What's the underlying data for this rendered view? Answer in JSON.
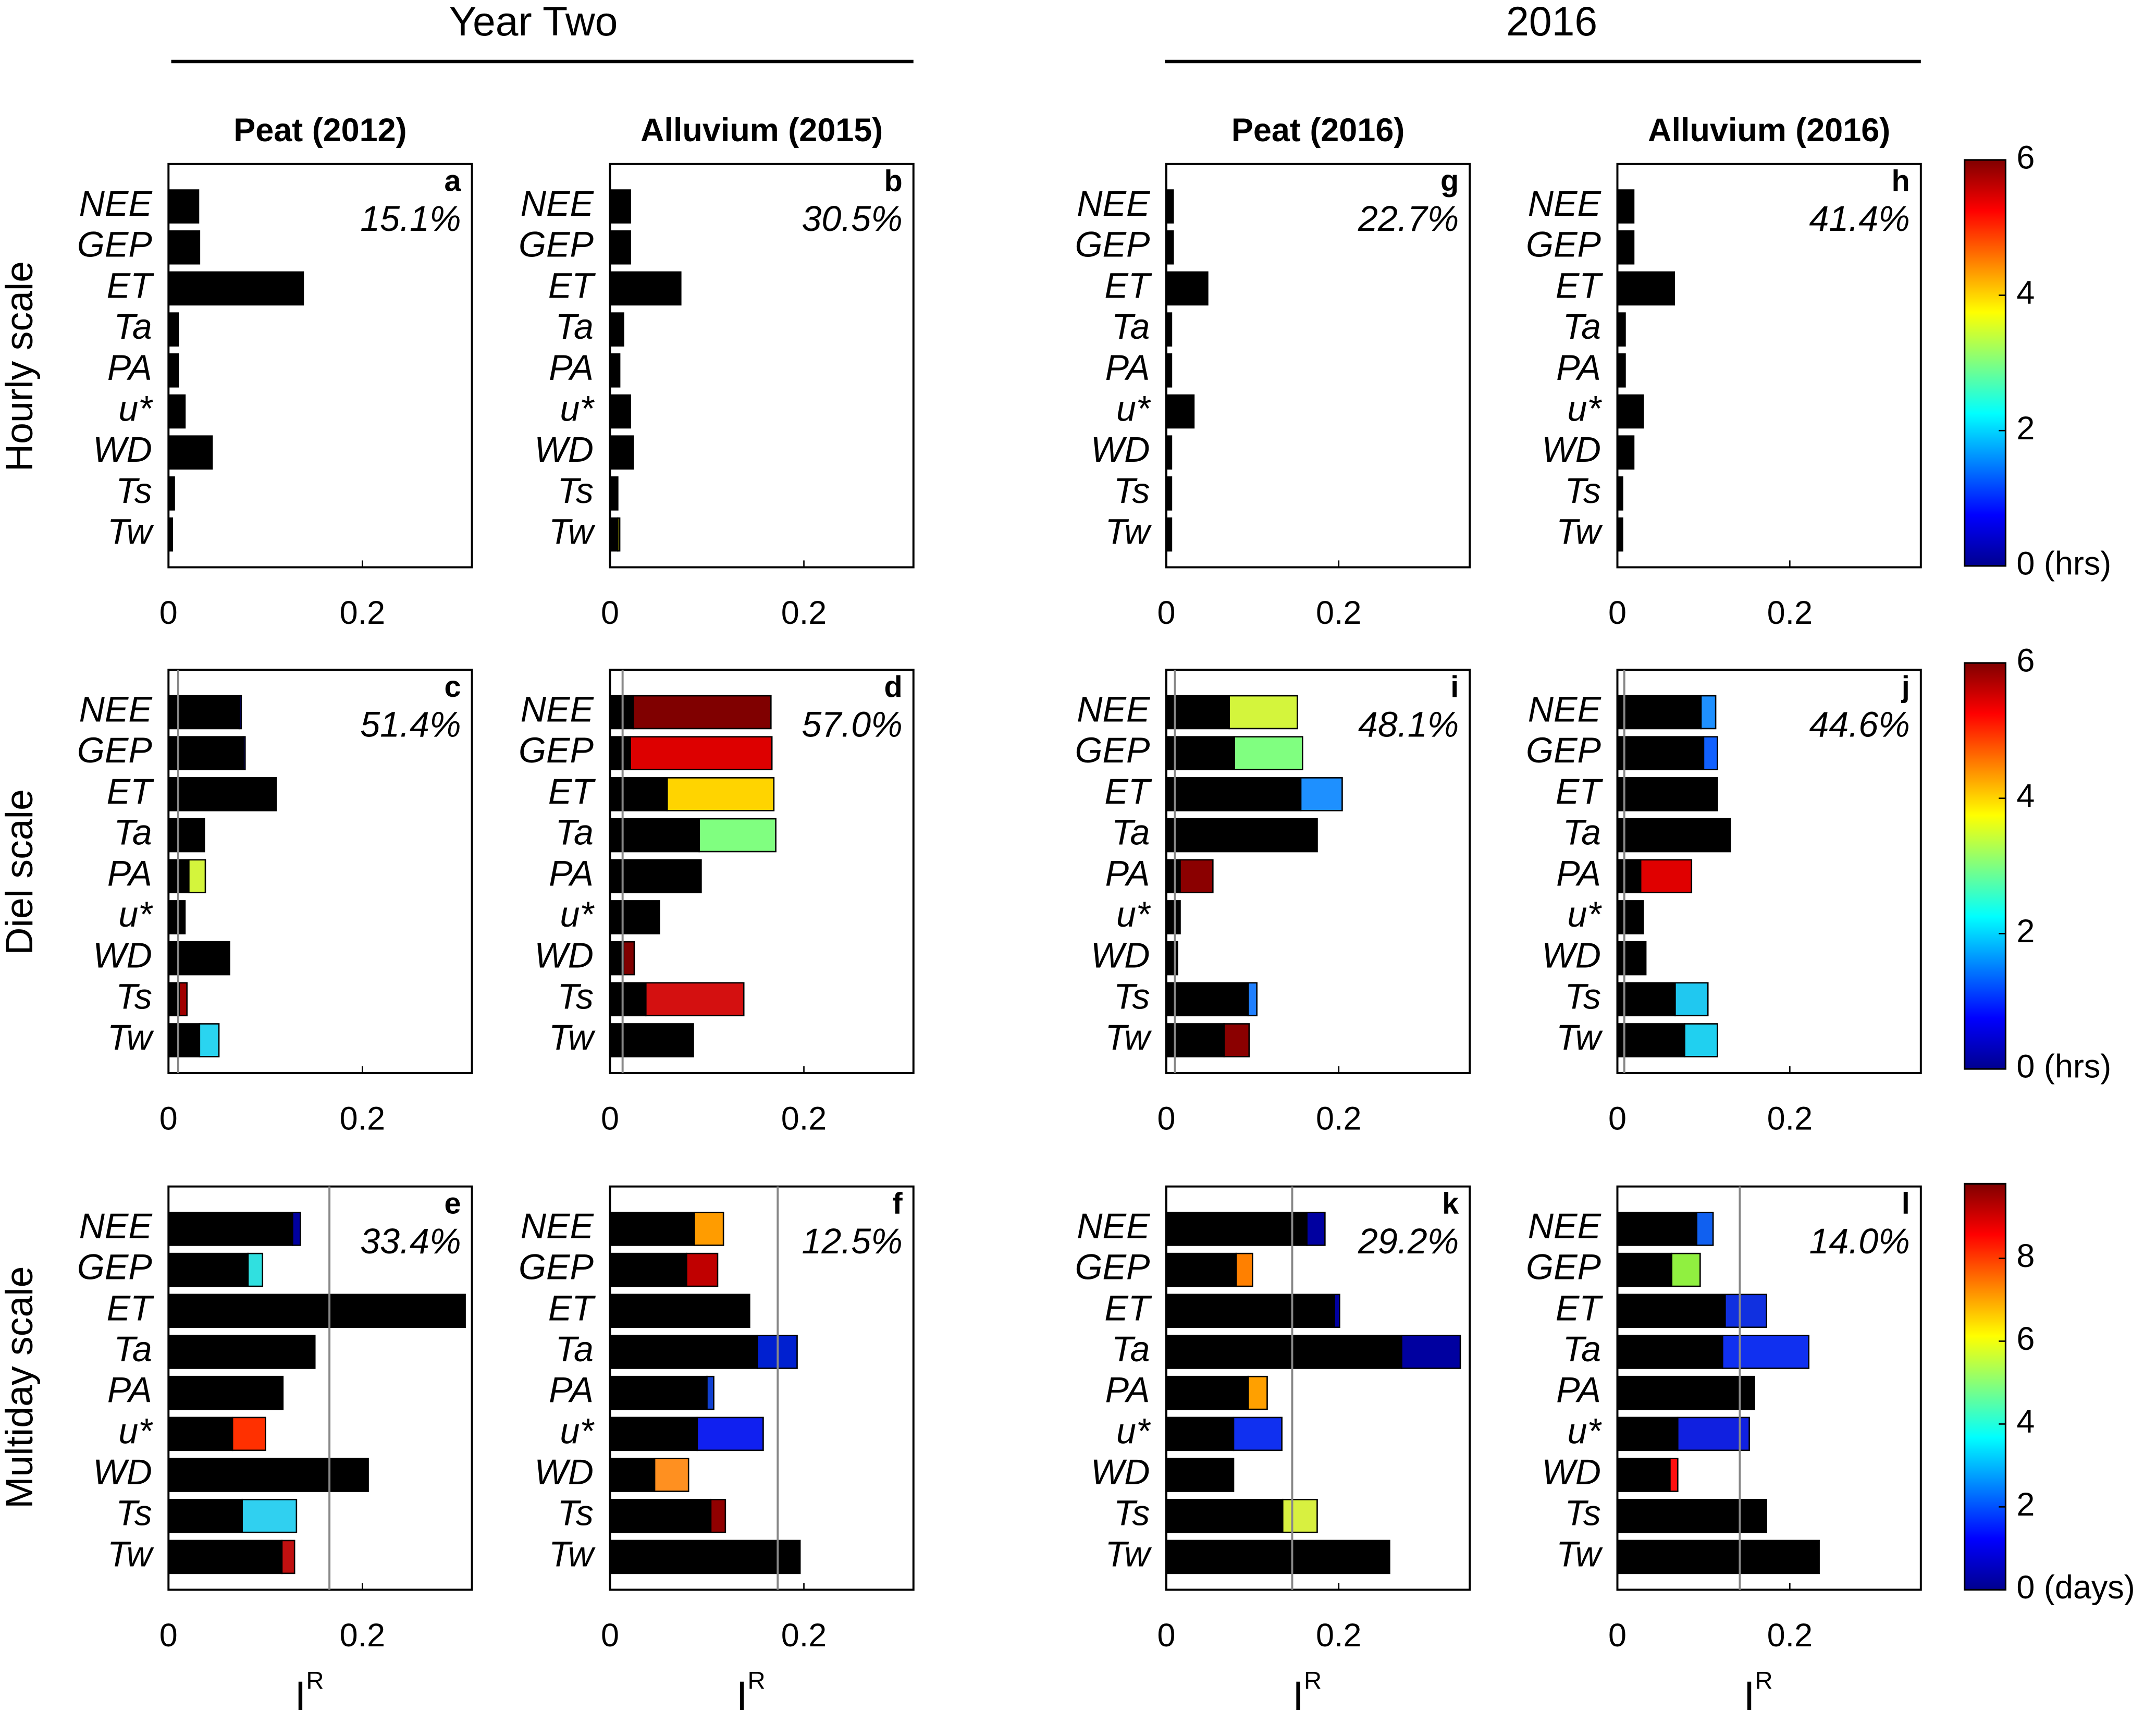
{
  "group_titles": [
    "Year Two",
    "2016"
  ],
  "column_titles": [
    "Peat (2012)",
    "Alluvium (2015)",
    "Peat (2016)",
    "Alluvium (2016)"
  ],
  "row_titles": [
    "Hourly scale",
    "Diel scale",
    "Multiday scale"
  ],
  "xlabel": "I",
  "xlabel_sup": "R",
  "colorbars": [
    {
      "ylim": [
        0,
        6
      ],
      "yticks": [
        {
          "value": 0,
          "label": "0 (hrs)"
        },
        2,
        4,
        6
      ]
    },
    {
      "ylim": [
        0,
        6
      ],
      "yticks": [
        {
          "value": 0,
          "label": "0 (hrs)"
        },
        2,
        4,
        6
      ]
    },
    {
      "ylim": [
        0,
        9.8
      ],
      "yticks": [
        {
          "value": 0,
          "label": "0 (days)"
        },
        2,
        4,
        6,
        8
      ]
    }
  ],
  "chart_data": [
    {
      "type": "bar",
      "letter": "a",
      "annotation": "15.1%",
      "categories": [
        "NEE",
        "GEP",
        "ET",
        "Ta",
        "PA",
        "u*",
        "WD",
        "Ts",
        "Tw"
      ],
      "values": [
        0.031,
        0.032,
        0.139,
        0.01,
        0.01,
        0.017,
        0.045,
        0.006,
        0.004
      ],
      "extra": [
        0,
        0,
        0,
        0,
        0,
        0,
        0,
        0,
        0
      ],
      "extra_colors": [
        "#000000",
        "#000000",
        "#000000",
        "#000000",
        "#000000",
        "#000000",
        "#000000",
        "#000000",
        "#000000"
      ],
      "color": "#000000",
      "threshold": null,
      "xlim": [
        0,
        0.313
      ],
      "xticks": [
        0,
        0.2
      ]
    },
    {
      "type": "bar",
      "letter": "b",
      "annotation": "30.5%",
      "categories": [
        "NEE",
        "GEP",
        "ET",
        "Ta",
        "PA",
        "u*",
        "WD",
        "Ts",
        "Tw"
      ],
      "values": [
        0.021,
        0.021,
        0.073,
        0.014,
        0.01,
        0.021,
        0.024,
        0.008,
        0.008
      ],
      "extra": [
        0,
        0,
        0,
        0,
        0,
        0,
        0,
        0,
        0.002
      ],
      "extra_colors": [
        "#000000",
        "#000000",
        "#000000",
        "#000000",
        "#000000",
        "#000000",
        "#000000",
        "#000000",
        "#a0a000"
      ],
      "color": "#000000",
      "threshold": null,
      "xlim": [
        0,
        0.313
      ],
      "xticks": [
        0,
        0.2
      ]
    },
    {
      "type": "bar",
      "letter": "c",
      "annotation": "51.4%",
      "categories": [
        "NEE",
        "GEP",
        "ET",
        "Ta",
        "PA",
        "u*",
        "WD",
        "Ts",
        "Tw"
      ],
      "values": [
        0.073,
        0.077,
        0.111,
        0.037,
        0.021,
        0.017,
        0.063,
        0.011,
        0.032
      ],
      "extra": [
        0.002,
        0.002,
        0,
        0,
        0.017,
        0,
        0,
        0.008,
        0.02
      ],
      "extra_colors": [
        "#000090",
        "#000090",
        "#000000",
        "#000000",
        "#d4f53c",
        "#000000",
        "#000000",
        "#a00000",
        "#2ad4f0"
      ],
      "color": "#000000",
      "threshold": 0.01,
      "xlim": [
        0,
        0.313
      ],
      "xticks": [
        0,
        0.2
      ]
    },
    {
      "type": "bar",
      "letter": "d",
      "annotation": "57.0%",
      "categories": [
        "NEE",
        "GEP",
        "ET",
        "Ta",
        "PA",
        "u*",
        "WD",
        "Ts",
        "Tw"
      ],
      "values": [
        0.024,
        0.021,
        0.059,
        0.092,
        0.094,
        0.051,
        0.014,
        0.037,
        0.086
      ],
      "extra": [
        0.142,
        0.146,
        0.11,
        0.079,
        0,
        0,
        0.011,
        0.101,
        0
      ],
      "extra_colors": [
        "#800000",
        "#dd0000",
        "#ffd400",
        "#80ff80",
        "#000000",
        "#000000",
        "#800000",
        "#d41010",
        "#000000"
      ],
      "color": "#000000",
      "threshold": 0.013,
      "xlim": [
        0,
        0.313
      ],
      "xticks": [
        0,
        0.2
      ]
    },
    {
      "type": "bar",
      "letter": "e",
      "annotation": "33.4%",
      "categories": [
        "NEE",
        "GEP",
        "ET",
        "Ta",
        "PA",
        "u*",
        "WD",
        "Ts",
        "Tw"
      ],
      "values": [
        0.128,
        0.082,
        0.306,
        0.151,
        0.118,
        0.066,
        0.206,
        0.076,
        0.117
      ],
      "extra": [
        0.008,
        0.015,
        0,
        0,
        0,
        0.034,
        0,
        0.056,
        0.013
      ],
      "extra_colors": [
        "#0000a0",
        "#30e0e0",
        "#000000",
        "#000000",
        "#000000",
        "#ff3000",
        "#000000",
        "#30d0f0",
        "#c01010"
      ],
      "color": "#000000",
      "threshold": 0.166,
      "xlim": [
        0,
        0.313
      ],
      "xticks": [
        0,
        0.2
      ]
    },
    {
      "type": "bar",
      "letter": "f",
      "annotation": "12.5%",
      "categories": [
        "NEE",
        "GEP",
        "ET",
        "Ta",
        "PA",
        "u*",
        "WD",
        "Ts",
        "Tw"
      ],
      "values": [
        0.087,
        0.079,
        0.144,
        0.152,
        0.1,
        0.09,
        0.046,
        0.104,
        0.196
      ],
      "extra": [
        0.03,
        0.032,
        0,
        0.041,
        0.007,
        0.068,
        0.035,
        0.015,
        0
      ],
      "extra_colors": [
        "#ff9c00",
        "#c00000",
        "#000000",
        "#0020d0",
        "#1040d0",
        "#1020f0",
        "#ff9020",
        "#900000",
        "#000000"
      ],
      "color": "#000000",
      "threshold": 0.173,
      "xlim": [
        0,
        0.313
      ],
      "xticks": [
        0,
        0.2
      ]
    },
    {
      "type": "bar",
      "letter": "g",
      "annotation": "22.7%",
      "categories": [
        "NEE",
        "GEP",
        "ET",
        "Ta",
        "PA",
        "u*",
        "WD",
        "Ts",
        "Tw"
      ],
      "values": [
        0.008,
        0.008,
        0.048,
        0.006,
        0.006,
        0.032,
        0.006,
        0.006,
        0.006
      ],
      "extra": [
        0,
        0,
        0,
        0,
        0,
        0,
        0,
        0,
        0
      ],
      "extra_colors": [
        "#000000",
        "#000000",
        "#000000",
        "#000000",
        "#000000",
        "#000000",
        "#000000",
        "#000000",
        "#000000"
      ],
      "color": "#000000",
      "threshold": null,
      "xlim": [
        0,
        0.352
      ],
      "xticks": [
        0,
        0.2
      ]
    },
    {
      "type": "bar",
      "letter": "h",
      "annotation": "41.4%",
      "categories": [
        "NEE",
        "GEP",
        "ET",
        "Ta",
        "PA",
        "u*",
        "WD",
        "Ts",
        "Tw"
      ],
      "values": [
        0.019,
        0.019,
        0.066,
        0.009,
        0.009,
        0.03,
        0.019,
        0.006,
        0.006
      ],
      "extra": [
        0,
        0,
        0,
        0,
        0,
        0,
        0,
        0,
        0
      ],
      "extra_colors": [
        "#000000",
        "#000000",
        "#000000",
        "#000000",
        "#000000",
        "#000000",
        "#000000",
        "#000000",
        "#000000"
      ],
      "color": "#000000",
      "threshold": null,
      "xlim": [
        0,
        0.352
      ],
      "xticks": [
        0,
        0.2
      ]
    },
    {
      "type": "bar",
      "letter": "i",
      "annotation": "48.1%",
      "categories": [
        "NEE",
        "GEP",
        "ET",
        "Ta",
        "PA",
        "u*",
        "WD",
        "Ts",
        "Tw"
      ],
      "values": [
        0.073,
        0.079,
        0.156,
        0.175,
        0.016,
        0.016,
        0.013,
        0.095,
        0.067
      ],
      "extra": [
        0.079,
        0.079,
        0.048,
        0,
        0.038,
        0,
        0,
        0.01,
        0.029
      ],
      "extra_colors": [
        "#d4f53c",
        "#80ff80",
        "#1e90ff",
        "#000000",
        "#8b0000",
        "#000000",
        "#000000",
        "#2080ff",
        "#8b0000"
      ],
      "color": "#000000",
      "threshold": 0.01,
      "xlim": [
        0,
        0.352
      ],
      "xticks": [
        0,
        0.2
      ]
    },
    {
      "type": "bar",
      "letter": "j",
      "annotation": "44.6%",
      "categories": [
        "NEE",
        "GEP",
        "ET",
        "Ta",
        "PA",
        "u*",
        "WD",
        "Ts",
        "Tw"
      ],
      "values": [
        0.097,
        0.1,
        0.116,
        0.131,
        0.027,
        0.03,
        0.033,
        0.067,
        0.078
      ],
      "extra": [
        0.017,
        0.016,
        0,
        0,
        0.059,
        0,
        0,
        0.038,
        0.038
      ],
      "extra_colors": [
        "#1e90ff",
        "#1060ff",
        "#000000",
        "#000000",
        "#e00000",
        "#000000",
        "#000000",
        "#20c8f0",
        "#20d0f0"
      ],
      "color": "#000000",
      "threshold": 0.008,
      "xlim": [
        0,
        0.352
      ],
      "xticks": [
        0,
        0.2
      ]
    },
    {
      "type": "bar",
      "letter": "k",
      "annotation": "29.2%",
      "categories": [
        "NEE",
        "GEP",
        "ET",
        "Ta",
        "PA",
        "u*",
        "WD",
        "Ts",
        "Tw"
      ],
      "values": [
        0.163,
        0.081,
        0.195,
        0.273,
        0.095,
        0.078,
        0.078,
        0.135,
        0.259
      ],
      "extra": [
        0.021,
        0.019,
        0.006,
        0.068,
        0.022,
        0.056,
        0,
        0.04,
        0
      ],
      "extra_colors": [
        "#0000a0",
        "#ff8000",
        "#0000a0",
        "#0000a0",
        "#ffa000",
        "#1030f0",
        "#000000",
        "#d8f040",
        "#000000"
      ],
      "color": "#000000",
      "threshold": 0.146,
      "xlim": [
        0,
        0.352
      ],
      "xticks": [
        0,
        0.2
      ]
    },
    {
      "type": "bar",
      "letter": "l",
      "annotation": "14.0%",
      "categories": [
        "NEE",
        "GEP",
        "ET",
        "Ta",
        "PA",
        "u*",
        "WD",
        "Ts",
        "Tw"
      ],
      "values": [
        0.092,
        0.063,
        0.125,
        0.122,
        0.159,
        0.07,
        0.061,
        0.173,
        0.234
      ],
      "extra": [
        0.019,
        0.033,
        0.048,
        0.1,
        0,
        0.083,
        0.009,
        0,
        0
      ],
      "extra_colors": [
        "#1060f0",
        "#90f040",
        "#1030e0",
        "#1030f0",
        "#000000",
        "#1020e0",
        "#ff1010",
        "#000000",
        "#000000"
      ],
      "color": "#000000",
      "threshold": 0.142,
      "xlim": [
        0,
        0.352
      ],
      "xticks": [
        0,
        0.2
      ]
    }
  ]
}
